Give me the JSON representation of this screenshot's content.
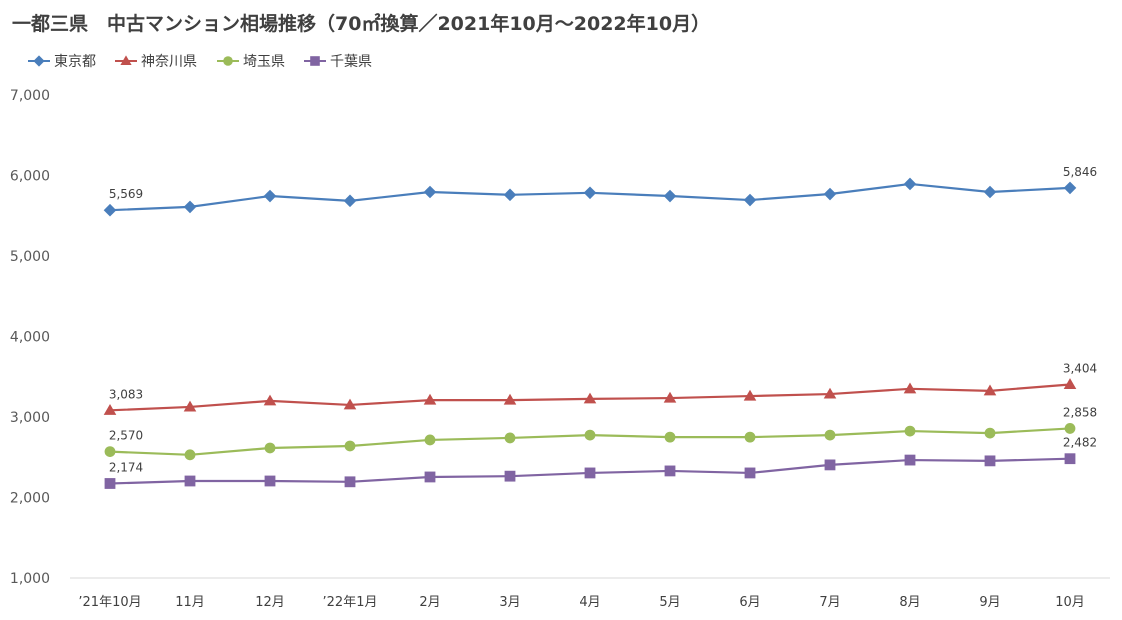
{
  "chart_data": {
    "type": "line",
    "title": "一都三県　中古マンション相場推移（70㎡換算／2021年10月～2022年10月）",
    "xlabel": "",
    "ylabel": "",
    "ylim": [
      1000,
      7000
    ],
    "yticks": [
      "1,000",
      "2,000",
      "3,000",
      "4,000",
      "5,000",
      "6,000",
      "7,000"
    ],
    "ytick_values": [
      1000,
      2000,
      3000,
      4000,
      5000,
      6000,
      7000
    ],
    "grid": false,
    "legend_position": "top-left",
    "categories": [
      "’21年10月",
      "11月",
      "12月",
      "’22年1月",
      "2月",
      "3月",
      "4月",
      "5月",
      "6月",
      "7月",
      "8月",
      "9月",
      "10月"
    ],
    "series": [
      {
        "name": "東京都",
        "color": "#4a7ebb",
        "marker": "diamond",
        "values": [
          5569,
          5610,
          5745,
          5685,
          5795,
          5760,
          5785,
          5745,
          5695,
          5770,
          5895,
          5795,
          5846
        ],
        "labels": {
          "0": "5,569",
          "12": "5,846"
        }
      },
      {
        "name": "神奈川県",
        "color": "#c0504d",
        "marker": "triangle",
        "values": [
          3083,
          3125,
          3200,
          3150,
          3210,
          3210,
          3225,
          3235,
          3260,
          3285,
          3350,
          3325,
          3404
        ],
        "labels": {
          "0": "3,083",
          "12": "3,404"
        }
      },
      {
        "name": "埼玉県",
        "color": "#9bbb59",
        "marker": "circle",
        "values": [
          2570,
          2530,
          2615,
          2640,
          2715,
          2740,
          2775,
          2750,
          2750,
          2775,
          2825,
          2800,
          2858
        ],
        "labels": {
          "0": "2,570",
          "12": "2,858"
        }
      },
      {
        "name": "千葉県",
        "color": "#8064a2",
        "marker": "square",
        "values": [
          2174,
          2205,
          2205,
          2195,
          2255,
          2265,
          2305,
          2330,
          2305,
          2405,
          2465,
          2455,
          2482
        ],
        "labels": {
          "0": "2,174",
          "12": "2,482"
        }
      }
    ]
  }
}
